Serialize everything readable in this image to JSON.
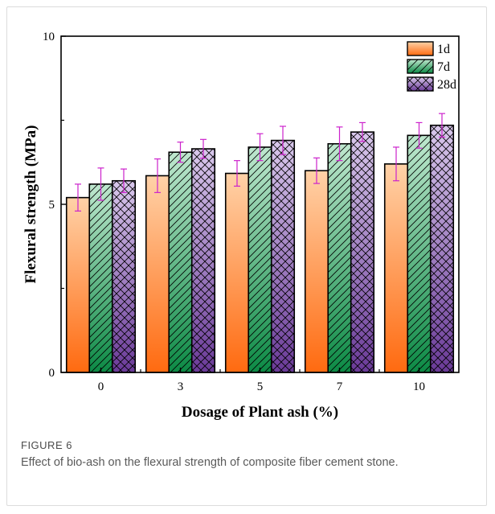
{
  "figure": {
    "label": "FIGURE 6",
    "caption": "Effect of bio-ash on the flexural strength of composite fiber cement stone."
  },
  "chart_data": {
    "type": "bar",
    "xlabel": "Dosage of Plant ash (%)",
    "ylabel": "Flexural strength (MPa)",
    "categories": [
      "0",
      "3",
      "5",
      "7",
      "10"
    ],
    "ylim": [
      0,
      10
    ],
    "yticks": [
      "0",
      "5",
      "10"
    ],
    "grid": false,
    "legend_position": "top-right",
    "series": [
      {
        "name": "1d",
        "values": [
          5.2,
          5.85,
          5.92,
          6.0,
          6.2
        ],
        "errors": [
          0.4,
          0.5,
          0.38,
          0.38,
          0.5
        ],
        "colors": [
          "#ff6a10",
          "#ffd2a8"
        ],
        "pattern": "none"
      },
      {
        "name": "7d",
        "values": [
          5.6,
          6.55,
          6.7,
          6.8,
          7.05
        ],
        "errors": [
          0.48,
          0.3,
          0.4,
          0.5,
          0.38
        ],
        "colors": [
          "#0c8a45",
          "#bfe8cf"
        ],
        "pattern": "diagonal"
      },
      {
        "name": "28d",
        "values": [
          5.7,
          6.65,
          6.9,
          7.15,
          7.35
        ],
        "errors": [
          0.35,
          0.28,
          0.42,
          0.28,
          0.35
        ],
        "colors": [
          "#6a3a98",
          "#d9c8ec"
        ],
        "pattern": "crosshatch"
      }
    ],
    "error_bar_color": "#cc22cc"
  }
}
